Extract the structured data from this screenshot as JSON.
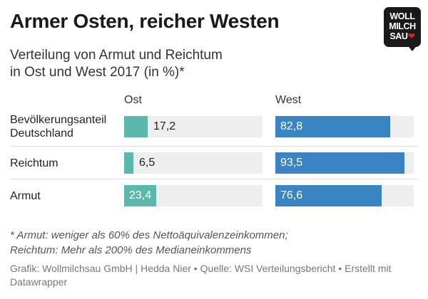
{
  "header": {
    "title": "Armer Osten, reicher Westen",
    "subtitle_line1": "Verteilung von Armut und Reichtum",
    "subtitle_line2": "in Ost und West 2017 (in %)*"
  },
  "logo": {
    "line1": "WOLL",
    "line2": "MILCH",
    "line3": "SAU",
    "heart": "❤"
  },
  "chart_data": {
    "type": "bar",
    "orientation": "horizontal",
    "columns": [
      "Ost",
      "West"
    ],
    "categories": [
      "Bevölkerungsanteil Deutschland",
      "Reichtum",
      "Armut"
    ],
    "category_lines": [
      [
        "Bevölkerungsanteil",
        "Deutschland"
      ],
      [
        "Reichtum"
      ],
      [
        "Armut"
      ]
    ],
    "series": [
      {
        "name": "Ost",
        "values": [
          17.2,
          6.5,
          23.4
        ],
        "labels": [
          "17,2",
          "6,5",
          "23,4"
        ],
        "color": "#5cb8ad"
      },
      {
        "name": "West",
        "values": [
          82.8,
          93.5,
          76.6
        ],
        "labels": [
          "82,8",
          "93,5",
          "76,6"
        ],
        "color": "#3a84c4"
      }
    ],
    "xlim": [
      0,
      100
    ],
    "grid": false,
    "legend": "column headers"
  },
  "footnote": {
    "line1": "* Armut: weniger als 60% des Nettoäquivalenzeinkommen;",
    "line2": "Reichtum: Mehr als 200% des Medianeinkommens"
  },
  "source": "Grafik: Wollmilchsau GmbH | Hedda Nier • Quelle: WSI Verteilungsbericht • Erstellt mit Datawrapper",
  "colors": {
    "ost": "#5cb8ad",
    "west": "#3a84c4",
    "track": "#eeeeee",
    "logo_bg": "#1a1a1a",
    "heart": "#e0202a"
  }
}
